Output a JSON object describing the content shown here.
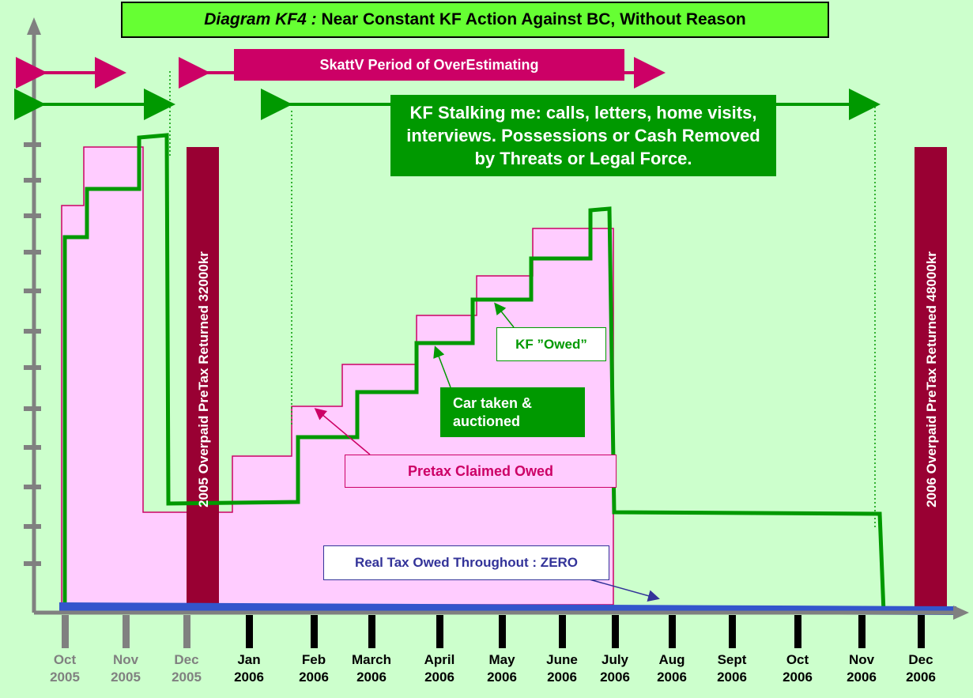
{
  "title": {
    "lead": "Diagram KF4 :",
    "rest": " Near Constant KF Action Against BC, Without Reason"
  },
  "annotations": {
    "skattv_period": "SkattV Period of OverEstimating",
    "kf_stalking": "KF Stalking me: calls, letters, home visits, interviews. Possessions or Cash Removed by Threats or Legal Force.",
    "kf_owed": "KF ”Owed”",
    "car_taken": "Car taken & auctioned",
    "pretax_claimed": "Pretax Claimed Owed",
    "real_tax": "Real Tax Owed Throughout : ZERO"
  },
  "bars": {
    "returned_2005": "2005 Overpaid PreTax Returned 32000kr",
    "returned_2006": "2006 Overpaid PreTax Returned 48000kr"
  },
  "x_axis": {
    "labels": [
      {
        "month": "Oct",
        "year": "2005",
        "past": true
      },
      {
        "month": "Nov",
        "year": "2005",
        "past": true
      },
      {
        "month": "Dec",
        "year": "2005",
        "past": true
      },
      {
        "month": "Jan",
        "year": "2006",
        "past": false
      },
      {
        "month": "Feb",
        "year": "2006",
        "past": false
      },
      {
        "month": "March",
        "year": "2006",
        "past": false
      },
      {
        "month": "April",
        "year": "2006",
        "past": false
      },
      {
        "month": "May",
        "year": "2006",
        "past": false
      },
      {
        "month": "June",
        "year": "2006",
        "past": false
      },
      {
        "month": "July",
        "year": "2006",
        "past": false
      },
      {
        "month": "Aug",
        "year": "2006",
        "past": false
      },
      {
        "month": "Sept",
        "year": "2006",
        "past": false
      },
      {
        "month": "Oct",
        "year": "2006",
        "past": false
      },
      {
        "month": "Nov",
        "year": "2006",
        "past": false
      },
      {
        "month": "Dec",
        "year": "2006",
        "past": false
      }
    ]
  },
  "colors": {
    "background": "#ccffcc",
    "green": "#009900",
    "magenta": "#cc0066",
    "pink_fill": "#ffccff",
    "dark_red": "#990033",
    "blue": "#333399",
    "grey": "#808080"
  }
}
